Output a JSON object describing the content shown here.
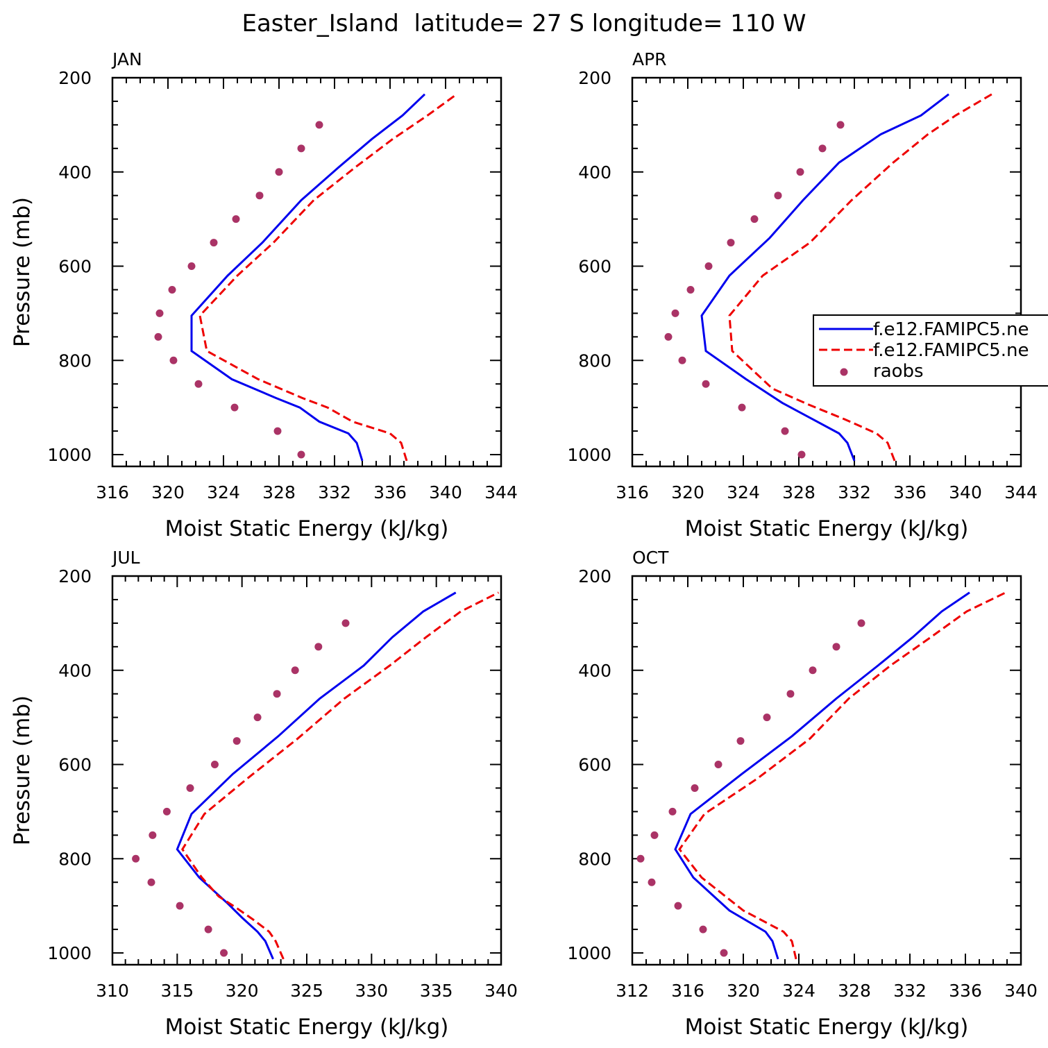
{
  "title": "Easter_Island  latitude= 27 S longitude= 110 W",
  "colors": {
    "model1": "#0000ee",
    "model2": "#ee0000",
    "obs": "#aa3366"
  },
  "legend": {
    "items": [
      {
        "label": "f.e12.FAMIPC5.ne",
        "style": "solid",
        "color": "#0000ee"
      },
      {
        "label": "f.e12.FAMIPC5.ne",
        "style": "dashed",
        "color": "#ee0000"
      },
      {
        "label": "raobs",
        "style": "marker",
        "color": "#aa3366"
      }
    ],
    "placement": "right of APR panel, clipped at image edge"
  },
  "chart_data": [
    {
      "type": "line",
      "panel_title": "JAN",
      "xlabel": "Moist Static Energy (kJ/kg)",
      "ylabel": "Pressure (mb)",
      "xlim": [
        316,
        344
      ],
      "ylim": [
        1025,
        200
      ],
      "yscale": "linear",
      "xticks": [
        316,
        320,
        324,
        328,
        332,
        336,
        340,
        344
      ],
      "xminor": 1,
      "yticks": [
        200,
        400,
        600,
        800,
        1000
      ],
      "yminor": 50,
      "series": [
        {
          "style": "solid",
          "color": "#0000ee",
          "points": [
            [
              334.0,
              1013
            ],
            [
              333.6,
              975
            ],
            [
              333.0,
              955
            ],
            [
              330.9,
              930
            ],
            [
              329.5,
              900
            ],
            [
              327.8,
              880
            ],
            [
              324.6,
              840
            ],
            [
              321.7,
              780
            ],
            [
              321.7,
              705
            ],
            [
              324.3,
              620
            ],
            [
              326.8,
              550
            ],
            [
              329.6,
              460
            ],
            [
              332.3,
              390
            ],
            [
              334.7,
              330
            ],
            [
              336.9,
              280
            ],
            [
              338.5,
              235
            ]
          ]
        },
        {
          "style": "dashed",
          "color": "#ee0000",
          "points": [
            [
              337.2,
              1013
            ],
            [
              336.8,
              975
            ],
            [
              336.0,
              955
            ],
            [
              333.3,
              930
            ],
            [
              331.5,
              900
            ],
            [
              329.7,
              880
            ],
            [
              326.5,
              840
            ],
            [
              322.8,
              780
            ],
            [
              322.3,
              705
            ],
            [
              325.0,
              620
            ],
            [
              327.6,
              550
            ],
            [
              330.5,
              460
            ],
            [
              333.5,
              390
            ],
            [
              336.2,
              330
            ],
            [
              338.7,
              280
            ],
            [
              340.8,
              235
            ]
          ]
        },
        {
          "style": "marker",
          "color": "#aa3366",
          "points": [
            [
              329.6,
              1000
            ],
            [
              327.9,
              950
            ],
            [
              324.8,
              900
            ],
            [
              322.2,
              850
            ],
            [
              320.4,
              800
            ],
            [
              319.3,
              750
            ],
            [
              319.4,
              700
            ],
            [
              320.3,
              650
            ],
            [
              321.7,
              600
            ],
            [
              323.3,
              550
            ],
            [
              324.9,
              500
            ],
            [
              326.6,
              450
            ],
            [
              328.0,
              400
            ],
            [
              329.6,
              350
            ],
            [
              330.9,
              300
            ]
          ]
        }
      ]
    },
    {
      "type": "line",
      "panel_title": "APR",
      "xlabel": "Moist Static Energy (kJ/kg)",
      "ylabel": "",
      "xlim": [
        316,
        344
      ],
      "ylim": [
        1025,
        200
      ],
      "yscale": "linear",
      "xticks": [
        316,
        320,
        324,
        328,
        332,
        336,
        340,
        344
      ],
      "xminor": 1,
      "yticks": [
        200,
        400,
        600,
        800,
        1000
      ],
      "yminor": 50,
      "series": [
        {
          "style": "solid",
          "color": "#0000ee",
          "points": [
            [
              332.0,
              1013
            ],
            [
              331.5,
              975
            ],
            [
              330.9,
              955
            ],
            [
              329.0,
              925
            ],
            [
              326.8,
              890
            ],
            [
              324.2,
              840
            ],
            [
              321.3,
              780
            ],
            [
              321.0,
              705
            ],
            [
              323.0,
              620
            ],
            [
              325.9,
              540
            ],
            [
              328.3,
              460
            ],
            [
              330.9,
              380
            ],
            [
              333.9,
              320
            ],
            [
              336.8,
              280
            ],
            [
              338.8,
              235
            ]
          ]
        },
        {
          "style": "dashed",
          "color": "#ee0000",
          "points": [
            [
              334.9,
              1013
            ],
            [
              334.4,
              975
            ],
            [
              333.6,
              955
            ],
            [
              331.3,
              925
            ],
            [
              328.8,
              895
            ],
            [
              326.1,
              860
            ],
            [
              323.2,
              780
            ],
            [
              323.0,
              705
            ],
            [
              325.4,
              620
            ],
            [
              328.8,
              550
            ],
            [
              331.8,
              460
            ],
            [
              334.8,
              380
            ],
            [
              337.3,
              320
            ],
            [
              339.3,
              280
            ],
            [
              341.9,
              235
            ]
          ]
        },
        {
          "style": "marker",
          "color": "#aa3366",
          "points": [
            [
              328.2,
              1000
            ],
            [
              327.0,
              950
            ],
            [
              323.9,
              900
            ],
            [
              321.3,
              850
            ],
            [
              319.6,
              800
            ],
            [
              318.6,
              750
            ],
            [
              319.1,
              700
            ],
            [
              320.2,
              650
            ],
            [
              321.5,
              600
            ],
            [
              323.1,
              550
            ],
            [
              324.8,
              500
            ],
            [
              326.5,
              450
            ],
            [
              328.1,
              400
            ],
            [
              329.7,
              350
            ],
            [
              331.0,
              300
            ]
          ]
        }
      ]
    },
    {
      "type": "line",
      "panel_title": "JUL",
      "xlabel": "Moist Static Energy (kJ/kg)",
      "ylabel": "Pressure (mb)",
      "xlim": [
        310,
        340
      ],
      "ylim": [
        1025,
        200
      ],
      "yscale": "linear",
      "xticks": [
        310,
        315,
        320,
        325,
        330,
        335,
        340
      ],
      "xminor": 1,
      "yticks": [
        200,
        400,
        600,
        800,
        1000
      ],
      "yminor": 50,
      "series": [
        {
          "style": "solid",
          "color": "#0000ee",
          "points": [
            [
              322.4,
              1013
            ],
            [
              321.8,
              975
            ],
            [
              321.2,
              955
            ],
            [
              320.0,
              925
            ],
            [
              318.9,
              895
            ],
            [
              316.7,
              840
            ],
            [
              315.0,
              780
            ],
            [
              316.1,
              705
            ],
            [
              319.3,
              620
            ],
            [
              322.8,
              540
            ],
            [
              326.0,
              460
            ],
            [
              329.4,
              390
            ],
            [
              331.6,
              330
            ],
            [
              334.0,
              275
            ],
            [
              336.5,
              235
            ]
          ]
        },
        {
          "style": "dashed",
          "color": "#ee0000",
          "points": [
            [
              323.2,
              1013
            ],
            [
              322.6,
              975
            ],
            [
              322.1,
              955
            ],
            [
              320.9,
              930
            ],
            [
              319.6,
              905
            ],
            [
              318.2,
              880
            ],
            [
              316.9,
              840
            ],
            [
              315.4,
              780
            ],
            [
              317.1,
              705
            ],
            [
              320.4,
              630
            ],
            [
              324.3,
              545
            ],
            [
              327.9,
              460
            ],
            [
              331.4,
              390
            ],
            [
              334.2,
              330
            ],
            [
              336.9,
              275
            ],
            [
              339.8,
              235
            ]
          ]
        },
        {
          "style": "marker",
          "color": "#aa3366",
          "points": [
            [
              318.6,
              1000
            ],
            [
              317.4,
              950
            ],
            [
              315.2,
              900
            ],
            [
              313.0,
              850
            ],
            [
              311.8,
              800
            ],
            [
              313.1,
              750
            ],
            [
              314.2,
              700
            ],
            [
              316.0,
              650
            ],
            [
              317.9,
              600
            ],
            [
              319.6,
              550
            ],
            [
              321.2,
              500
            ],
            [
              322.7,
              450
            ],
            [
              324.1,
              400
            ],
            [
              325.9,
              350
            ],
            [
              328.0,
              300
            ]
          ]
        }
      ]
    },
    {
      "type": "line",
      "panel_title": "OCT",
      "xlabel": "Moist Static Energy (kJ/kg)",
      "ylabel": "",
      "xlim": [
        312,
        340
      ],
      "ylim": [
        1025,
        200
      ],
      "yscale": "linear",
      "xticks": [
        312,
        316,
        320,
        324,
        328,
        332,
        336,
        340
      ],
      "xminor": 1,
      "yticks": [
        200,
        400,
        600,
        800,
        1000
      ],
      "yminor": 50,
      "series": [
        {
          "style": "solid",
          "color": "#0000ee",
          "points": [
            [
              322.5,
              1013
            ],
            [
              322.1,
              975
            ],
            [
              321.6,
              955
            ],
            [
              319.0,
              910
            ],
            [
              316.4,
              840
            ],
            [
              315.1,
              780
            ],
            [
              316.2,
              705
            ],
            [
              319.9,
              620
            ],
            [
              323.5,
              540
            ],
            [
              326.7,
              460
            ],
            [
              329.7,
              390
            ],
            [
              332.2,
              330
            ],
            [
              334.3,
              275
            ],
            [
              336.3,
              235
            ]
          ]
        },
        {
          "style": "dashed",
          "color": "#ee0000",
          "points": [
            [
              323.8,
              1013
            ],
            [
              323.5,
              975
            ],
            [
              322.9,
              955
            ],
            [
              320.0,
              910
            ],
            [
              317.0,
              840
            ],
            [
              315.4,
              780
            ],
            [
              317.2,
              705
            ],
            [
              321.0,
              630
            ],
            [
              324.8,
              545
            ],
            [
              327.6,
              460
            ],
            [
              330.6,
              390
            ],
            [
              333.5,
              330
            ],
            [
              336.1,
              275
            ],
            [
              338.9,
              235
            ]
          ]
        },
        {
          "style": "marker",
          "color": "#aa3366",
          "points": [
            [
              318.6,
              1000
            ],
            [
              317.1,
              950
            ],
            [
              315.3,
              900
            ],
            [
              313.4,
              850
            ],
            [
              312.6,
              800
            ],
            [
              313.6,
              750
            ],
            [
              314.9,
              700
            ],
            [
              316.5,
              650
            ],
            [
              318.2,
              600
            ],
            [
              319.8,
              550
            ],
            [
              321.7,
              500
            ],
            [
              323.4,
              450
            ],
            [
              325.0,
              400
            ],
            [
              326.7,
              350
            ],
            [
              328.5,
              300
            ]
          ]
        }
      ]
    }
  ]
}
